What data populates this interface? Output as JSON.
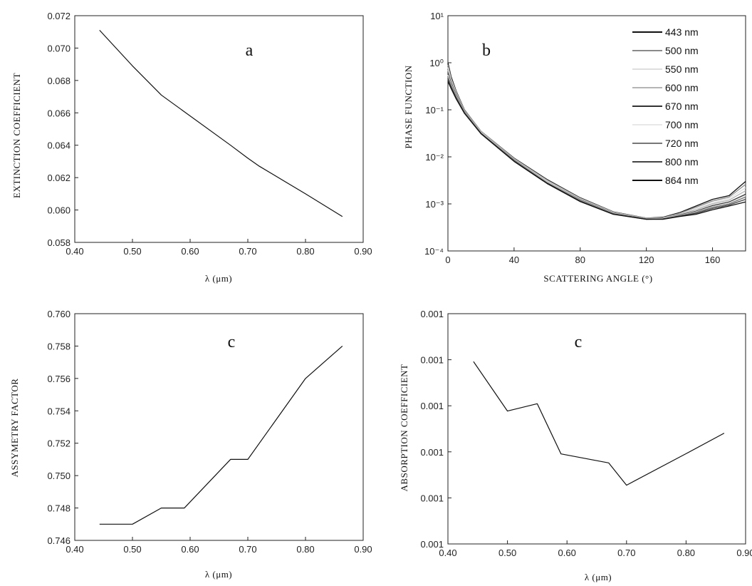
{
  "chart_data": [
    {
      "type": "line",
      "panel_label": "a",
      "xlabel": "λ (μm)",
      "ylabel": "EXTINCTION COEFFICIENT",
      "xlim": [
        0.4,
        0.9
      ],
      "ylim": [
        0.058,
        0.072
      ],
      "xticks": [
        "0.40",
        "0.50",
        "0.60",
        "0.70",
        "0.80",
        "0.90"
      ],
      "yticks": [
        "0.058",
        "0.060",
        "0.062",
        "0.064",
        "0.066",
        "0.068",
        "0.070",
        "0.072"
      ],
      "grid": false,
      "series": [
        {
          "x": [
            0.443,
            0.5,
            0.55,
            0.67,
            0.7,
            0.72,
            0.8,
            0.864
          ],
          "y": [
            0.0711,
            0.0689,
            0.0671,
            0.064,
            0.0632,
            0.0627,
            0.061,
            0.0596
          ]
        }
      ]
    },
    {
      "type": "line",
      "panel_label": "b",
      "xlabel": "SCATTERING ANGLE (°)",
      "ylabel": "PHASE FUNCTION",
      "xlim": [
        0,
        180
      ],
      "ylim": [
        0.0001,
        10
      ],
      "yscale": "log",
      "xticks": [
        "0",
        "40",
        "80",
        "120",
        "160"
      ],
      "yticks": [
        "10⁻⁴",
        "10⁻³",
        "10⁻²",
        "10⁻¹",
        "10⁰",
        "10¹"
      ],
      "grid": false,
      "legend_position": "top-right",
      "series": [
        {
          "name": "443 nm",
          "color": "#111111",
          "x": [
            0,
            2,
            5,
            10,
            20,
            40,
            60,
            80,
            100,
            120,
            130,
            140,
            150,
            160,
            170,
            180
          ],
          "y": [
            1.0,
            0.5,
            0.25,
            0.1,
            0.035,
            0.0094,
            0.0033,
            0.00135,
            0.00068,
            0.0005,
            0.00052,
            0.00065,
            0.0009,
            0.00125,
            0.0015,
            0.003
          ]
        },
        {
          "name": "500 nm",
          "color": "#8a8a8a",
          "x": [
            0,
            2,
            5,
            10,
            20,
            40,
            60,
            80,
            100,
            120,
            130,
            140,
            150,
            160,
            170,
            180
          ],
          "y": [
            0.9,
            0.46,
            0.24,
            0.098,
            0.035,
            0.0092,
            0.0032,
            0.00132,
            0.00067,
            0.0005,
            0.00051,
            0.00063,
            0.00085,
            0.00115,
            0.0014,
            0.0026
          ]
        },
        {
          "name": "550 nm",
          "color": "#dedede",
          "x": [
            0,
            2,
            5,
            10,
            20,
            40,
            60,
            80,
            100,
            120,
            130,
            140,
            150,
            160,
            170,
            180
          ],
          "y": [
            0.8,
            0.43,
            0.23,
            0.096,
            0.034,
            0.009,
            0.0031,
            0.00128,
            0.00066,
            0.00049,
            0.0005,
            0.00061,
            0.0008,
            0.00105,
            0.0013,
            0.0022
          ]
        },
        {
          "name": "600 nm",
          "color": "#b5b5b5",
          "x": [
            0,
            2,
            5,
            10,
            20,
            40,
            60,
            80,
            100,
            120,
            130,
            140,
            150,
            160,
            170,
            180
          ],
          "y": [
            0.7,
            0.4,
            0.22,
            0.094,
            0.034,
            0.0088,
            0.003,
            0.00125,
            0.00065,
            0.00049,
            0.0005,
            0.0006,
            0.00075,
            0.001,
            0.0012,
            0.0019
          ]
        },
        {
          "name": "670 nm",
          "color": "#333333",
          "x": [
            0,
            2,
            5,
            10,
            20,
            40,
            60,
            80,
            100,
            120,
            130,
            140,
            150,
            160,
            170,
            180
          ],
          "y": [
            0.6,
            0.37,
            0.21,
            0.092,
            0.033,
            0.0086,
            0.0029,
            0.00122,
            0.00064,
            0.00048,
            0.00049,
            0.00058,
            0.0007,
            0.00092,
            0.0011,
            0.0016
          ]
        },
        {
          "name": "700 nm",
          "color": "#e8e8e8",
          "x": [
            0,
            2,
            5,
            10,
            20,
            40,
            60,
            80,
            100,
            120,
            130,
            140,
            150,
            160,
            170,
            180
          ],
          "y": [
            0.55,
            0.35,
            0.2,
            0.09,
            0.033,
            0.0085,
            0.0029,
            0.0012,
            0.00063,
            0.00048,
            0.00049,
            0.00057,
            0.00068,
            0.00088,
            0.00105,
            0.0015
          ]
        },
        {
          "name": "720 nm",
          "color": "#777777",
          "x": [
            0,
            2,
            5,
            10,
            20,
            40,
            60,
            80,
            100,
            120,
            130,
            140,
            150,
            160,
            170,
            180
          ],
          "y": [
            0.5,
            0.33,
            0.19,
            0.088,
            0.032,
            0.0084,
            0.0028,
            0.00118,
            0.00062,
            0.00048,
            0.00048,
            0.00056,
            0.00066,
            0.00085,
            0.001,
            0.0014
          ]
        },
        {
          "name": "800 nm",
          "color": "#444444",
          "x": [
            0,
            2,
            5,
            10,
            20,
            40,
            60,
            80,
            100,
            120,
            130,
            140,
            150,
            160,
            170,
            180
          ],
          "y": [
            0.45,
            0.3,
            0.18,
            0.086,
            0.032,
            0.0082,
            0.0028,
            0.00115,
            0.00061,
            0.00047,
            0.00048,
            0.00055,
            0.00063,
            0.0008,
            0.00095,
            0.00125
          ]
        },
        {
          "name": "864 nm",
          "color": "#111111",
          "x": [
            0,
            2,
            5,
            10,
            20,
            40,
            60,
            80,
            100,
            120,
            130,
            140,
            150,
            160,
            170,
            180
          ],
          "y": [
            0.4,
            0.28,
            0.17,
            0.084,
            0.031,
            0.008,
            0.0027,
            0.00112,
            0.0006,
            0.00047,
            0.00047,
            0.00054,
            0.0006,
            0.00075,
            0.0009,
            0.0011
          ]
        }
      ]
    },
    {
      "type": "line",
      "panel_label": "c",
      "xlabel": "λ (μm)",
      "ylabel": "ASSYMETRY FACTOR",
      "xlim": [
        0.4,
        0.9
      ],
      "ylim": [
        0.746,
        0.76
      ],
      "xticks": [
        "0.40",
        "0.50",
        "0.60",
        "0.70",
        "0.80",
        "0.90"
      ],
      "yticks": [
        "0.746",
        "0.748",
        "0.750",
        "0.752",
        "0.754",
        "0.756",
        "0.758",
        "0.760"
      ],
      "grid": false,
      "series": [
        {
          "x": [
            0.443,
            0.5,
            0.55,
            0.59,
            0.67,
            0.7,
            0.8,
            0.864
          ],
          "y": [
            0.747,
            0.747,
            0.748,
            0.748,
            0.751,
            0.751,
            0.756,
            0.758
          ]
        }
      ]
    },
    {
      "type": "line",
      "panel_label": "c",
      "xlabel": "λ (μm)",
      "ylabel": "ABSORPTION COEFFICIENT",
      "xlim": [
        0.4,
        0.9
      ],
      "ylim": [
        0.0,
        1.0
      ],
      "ylim_note": "relative scale; tick labels all print 0.001",
      "xticks": [
        "0.40",
        "0.50",
        "0.60",
        "0.70",
        "0.80",
        "0.90"
      ],
      "yticks": [
        "0.001",
        "0.001",
        "0.001",
        "0.001",
        "0.001",
        "0.001"
      ],
      "grid": false,
      "series": [
        {
          "x": [
            0.443,
            0.5,
            0.55,
            0.59,
            0.67,
            0.7,
            0.8,
            0.864
          ],
          "y": [
            0.792,
            0.577,
            0.609,
            0.391,
            0.352,
            0.255,
            0.392,
            0.481
          ]
        }
      ]
    }
  ]
}
